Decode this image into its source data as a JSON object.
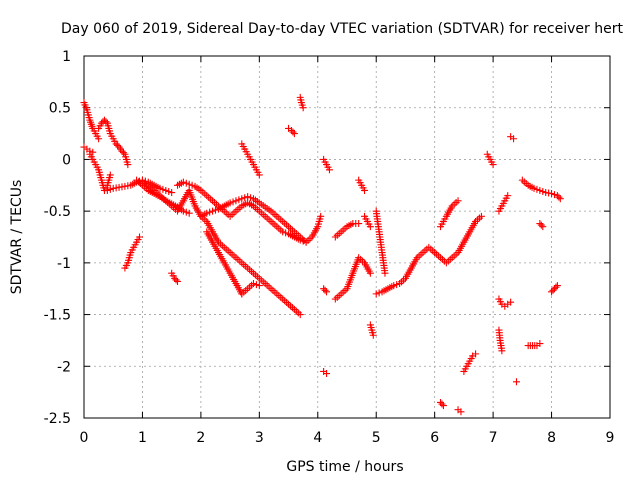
{
  "chart_data": {
    "type": "scatter",
    "title": "Day 060 of 2019, Sidereal Day-to-day VTEC variation (SDTVAR) for receiver hert",
    "xlabel": "GPS time / hours",
    "ylabel": "SDTVAR / TECUs",
    "xlim": [
      0,
      9
    ],
    "ylim": [
      -2.5,
      1
    ],
    "x_ticks": [
      "0",
      "1",
      "2",
      "3",
      "4",
      "5",
      "6",
      "7",
      "8",
      "9"
    ],
    "y_ticks": [
      "1",
      "0.5",
      "0",
      "-0.5",
      "-1",
      "-1.5",
      "-2",
      "-2.5"
    ],
    "grid": true,
    "marker": "+",
    "color": "#ff0000",
    "series": [
      {
        "name": "SDTVAR",
        "segments": [
          {
            "x": [
              0.0,
              0.05,
              0.1,
              0.15,
              0.2,
              0.25
            ],
            "y": [
              0.55,
              0.48,
              0.38,
              0.3,
              0.25,
              0.2
            ]
          },
          {
            "x": [
              0.0,
              0.05,
              0.1,
              0.15
            ],
            "y": [
              0.12,
              0.1,
              0.08,
              0.07
            ]
          },
          {
            "x": [
              0.25,
              0.3,
              0.35,
              0.4,
              0.45,
              0.5,
              0.55,
              0.6,
              0.65,
              0.7,
              0.75
            ],
            "y": [
              0.3,
              0.35,
              0.38,
              0.35,
              0.25,
              0.2,
              0.15,
              0.12,
              0.08,
              0.05,
              -0.05
            ]
          },
          {
            "x": [
              0.1,
              0.15,
              0.2,
              0.25,
              0.3,
              0.35,
              0.4,
              0.45
            ],
            "y": [
              0.05,
              0.0,
              -0.05,
              -0.1,
              -0.2,
              -0.3,
              -0.25,
              -0.15
            ]
          },
          {
            "x": [
              0.4,
              0.5,
              0.6,
              0.7,
              0.8,
              0.9,
              1.0,
              1.1,
              1.2,
              1.3,
              1.4,
              1.5
            ],
            "y": [
              -0.3,
              -0.28,
              -0.27,
              -0.26,
              -0.25,
              -0.22,
              -0.2,
              -0.22,
              -0.25,
              -0.28,
              -0.3,
              -0.32
            ]
          },
          {
            "x": [
              0.9,
              1.0,
              1.1,
              1.2,
              1.3,
              1.4,
              1.5,
              1.6,
              1.7,
              1.8
            ],
            "y": [
              -0.2,
              -0.25,
              -0.3,
              -0.33,
              -0.36,
              -0.4,
              -0.43,
              -0.46,
              -0.5,
              -0.52
            ]
          },
          {
            "x": [
              1.0,
              1.1,
              1.2,
              1.3,
              1.4,
              1.5,
              1.6,
              1.7,
              1.8,
              1.9,
              2.0,
              2.1,
              2.2,
              2.3,
              2.4,
              2.5,
              2.6,
              2.7,
              2.8,
              2.9,
              3.0,
              3.1,
              3.2,
              3.3,
              3.4,
              3.5,
              3.6,
              3.7
            ],
            "y": [
              -0.22,
              -0.26,
              -0.3,
              -0.35,
              -0.4,
              -0.45,
              -0.5,
              -0.4,
              -0.3,
              -0.45,
              -0.55,
              -0.6,
              -0.7,
              -0.8,
              -0.85,
              -0.9,
              -0.95,
              -1.0,
              -1.05,
              -1.1,
              -1.15,
              -1.2,
              -1.25,
              -1.3,
              -1.35,
              -1.4,
              -1.45,
              -1.5
            ]
          },
          {
            "x": [
              1.6,
              1.7,
              1.8,
              1.9,
              2.0,
              2.1,
              2.2,
              2.3,
              2.4,
              2.5,
              2.6,
              2.7,
              2.8,
              2.9,
              3.0,
              3.1,
              3.2,
              3.3,
              3.4,
              3.5,
              3.6,
              3.7,
              3.8
            ],
            "y": [
              -0.25,
              -0.22,
              -0.24,
              -0.26,
              -0.3,
              -0.35,
              -0.4,
              -0.45,
              -0.5,
              -0.55,
              -0.5,
              -0.45,
              -0.42,
              -0.45,
              -0.5,
              -0.55,
              -0.6,
              -0.65,
              -0.7,
              -0.72,
              -0.75,
              -0.78,
              -0.8
            ]
          },
          {
            "x": [
              2.0,
              2.1,
              2.2,
              2.3,
              2.4,
              2.5,
              2.6,
              2.7,
              2.8,
              2.9,
              3.0,
              3.1,
              3.2,
              3.3,
              3.4,
              3.5,
              3.6,
              3.7,
              3.8,
              3.9,
              4.0,
              4.05
            ],
            "y": [
              -0.55,
              -0.52,
              -0.5,
              -0.48,
              -0.45,
              -0.42,
              -0.4,
              -0.38,
              -0.36,
              -0.38,
              -0.42,
              -0.46,
              -0.5,
              -0.55,
              -0.6,
              -0.65,
              -0.7,
              -0.75,
              -0.8,
              -0.75,
              -0.65,
              -0.55
            ]
          },
          {
            "x": [
              2.1,
              2.2,
              2.3,
              2.4,
              2.5,
              2.6,
              2.7
            ],
            "y": [
              -0.7,
              -0.8,
              -0.9,
              -1.0,
              -1.1,
              -1.2,
              -1.3
            ]
          },
          {
            "x": [
              2.7,
              2.75,
              2.8,
              2.85,
              2.9,
              2.95,
              3.0
            ],
            "y": [
              0.15,
              0.1,
              0.05,
              0.0,
              -0.05,
              -0.1,
              -0.15
            ]
          },
          {
            "x": [
              2.7,
              2.8,
              2.9,
              3.0
            ],
            "y": [
              -1.3,
              -1.25,
              -1.2,
              -1.22
            ]
          },
          {
            "x": [
              3.5,
              3.55,
              3.6
            ],
            "y": [
              0.3,
              0.28,
              0.25
            ]
          },
          {
            "x": [
              3.7,
              3.72,
              3.75
            ],
            "y": [
              0.6,
              0.55,
              0.5
            ]
          },
          {
            "x": [
              1.5,
              1.55,
              1.6
            ],
            "y": [
              -1.1,
              -1.15,
              -1.18
            ]
          },
          {
            "x": [
              0.7,
              0.75,
              0.8,
              0.85,
              0.9,
              0.95
            ],
            "y": [
              -1.05,
              -1.0,
              -0.9,
              -0.85,
              -0.8,
              -0.75
            ]
          },
          {
            "x": [
              4.1,
              4.15,
              4.2
            ],
            "y": [
              0.0,
              -0.05,
              -0.1
            ]
          },
          {
            "x": [
              4.1,
              4.15
            ],
            "y": [
              -1.25,
              -1.28
            ]
          },
          {
            "x": [
              4.1,
              4.15
            ],
            "y": [
              -2.05,
              -2.07
            ]
          },
          {
            "x": [
              4.3,
              4.4,
              4.5,
              4.6,
              4.7
            ],
            "y": [
              -0.75,
              -0.7,
              -0.65,
              -0.62,
              -0.62
            ]
          },
          {
            "x": [
              4.3,
              4.4,
              4.5,
              4.6,
              4.7,
              4.8,
              4.9
            ],
            "y": [
              -1.35,
              -1.3,
              -1.25,
              -1.1,
              -0.95,
              -1.0,
              -1.1
            ]
          },
          {
            "x": [
              4.7,
              4.75,
              4.8
            ],
            "y": [
              -0.2,
              -0.25,
              -0.3
            ]
          },
          {
            "x": [
              4.8,
              4.85,
              4.9
            ],
            "y": [
              -0.55,
              -0.6,
              -0.65
            ]
          },
          {
            "x": [
              4.9,
              4.95
            ],
            "y": [
              -1.6,
              -1.7
            ]
          },
          {
            "x": [
              5.0,
              5.05,
              5.1,
              5.15
            ],
            "y": [
              -0.5,
              -0.7,
              -0.9,
              -1.1
            ]
          },
          {
            "x": [
              5.0,
              5.1,
              5.2,
              5.3,
              5.4,
              5.5,
              5.6,
              5.7,
              5.8,
              5.9,
              6.0
            ],
            "y": [
              -1.3,
              -1.28,
              -1.25,
              -1.22,
              -1.2,
              -1.15,
              -1.05,
              -0.95,
              -0.9,
              -0.85,
              -0.9
            ]
          },
          {
            "x": [
              6.0,
              6.1,
              6.2,
              6.3,
              6.4,
              6.5,
              6.6,
              6.7,
              6.8
            ],
            "y": [
              -0.9,
              -0.95,
              -1.0,
              -0.95,
              -0.9,
              -0.8,
              -0.7,
              -0.6,
              -0.55
            ]
          },
          {
            "x": [
              6.1,
              6.15,
              6.2,
              6.3,
              6.4
            ],
            "y": [
              -0.65,
              -0.6,
              -0.55,
              -0.45,
              -0.4
            ]
          },
          {
            "x": [
              6.1,
              6.15
            ],
            "y": [
              -2.35,
              -2.38
            ]
          },
          {
            "x": [
              6.4,
              6.45
            ],
            "y": [
              -2.42,
              -2.44
            ]
          },
          {
            "x": [
              6.5,
              6.55,
              6.6,
              6.65,
              6.7
            ],
            "y": [
              -2.05,
              -2.0,
              -1.95,
              -1.9,
              -1.88
            ]
          },
          {
            "x": [
              6.9,
              6.95,
              7.0
            ],
            "y": [
              0.05,
              0.0,
              -0.05
            ]
          },
          {
            "x": [
              7.1,
              7.15,
              7.2,
              7.25
            ],
            "y": [
              -0.5,
              -0.45,
              -0.4,
              -0.35
            ]
          },
          {
            "x": [
              7.1,
              7.15,
              7.2,
              7.25,
              7.3
            ],
            "y": [
              -1.35,
              -1.4,
              -1.42,
              -1.4,
              -1.38
            ]
          },
          {
            "x": [
              7.1,
              7.12,
              7.15
            ],
            "y": [
              -1.65,
              -1.75,
              -1.85
            ]
          },
          {
            "x": [
              7.3,
              7.35
            ],
            "y": [
              0.22,
              0.2
            ]
          },
          {
            "x": [
              7.5,
              7.6,
              7.7,
              7.8,
              7.9,
              8.0,
              8.1,
              8.15
            ],
            "y": [
              -0.2,
              -0.25,
              -0.28,
              -0.3,
              -0.32,
              -0.33,
              -0.35,
              -0.38
            ]
          },
          {
            "x": [
              7.8,
              7.85
            ],
            "y": [
              -0.62,
              -0.65
            ]
          },
          {
            "x": [
              7.6,
              7.75,
              7.8
            ],
            "y": [
              -1.8,
              -1.8,
              -1.78
            ]
          },
          {
            "x": [
              8.0,
              8.05,
              8.1
            ],
            "y": [
              -1.28,
              -1.25,
              -1.22
            ]
          },
          {
            "x": [
              7.4
            ],
            "y": [
              -2.15
            ]
          }
        ]
      }
    ]
  }
}
